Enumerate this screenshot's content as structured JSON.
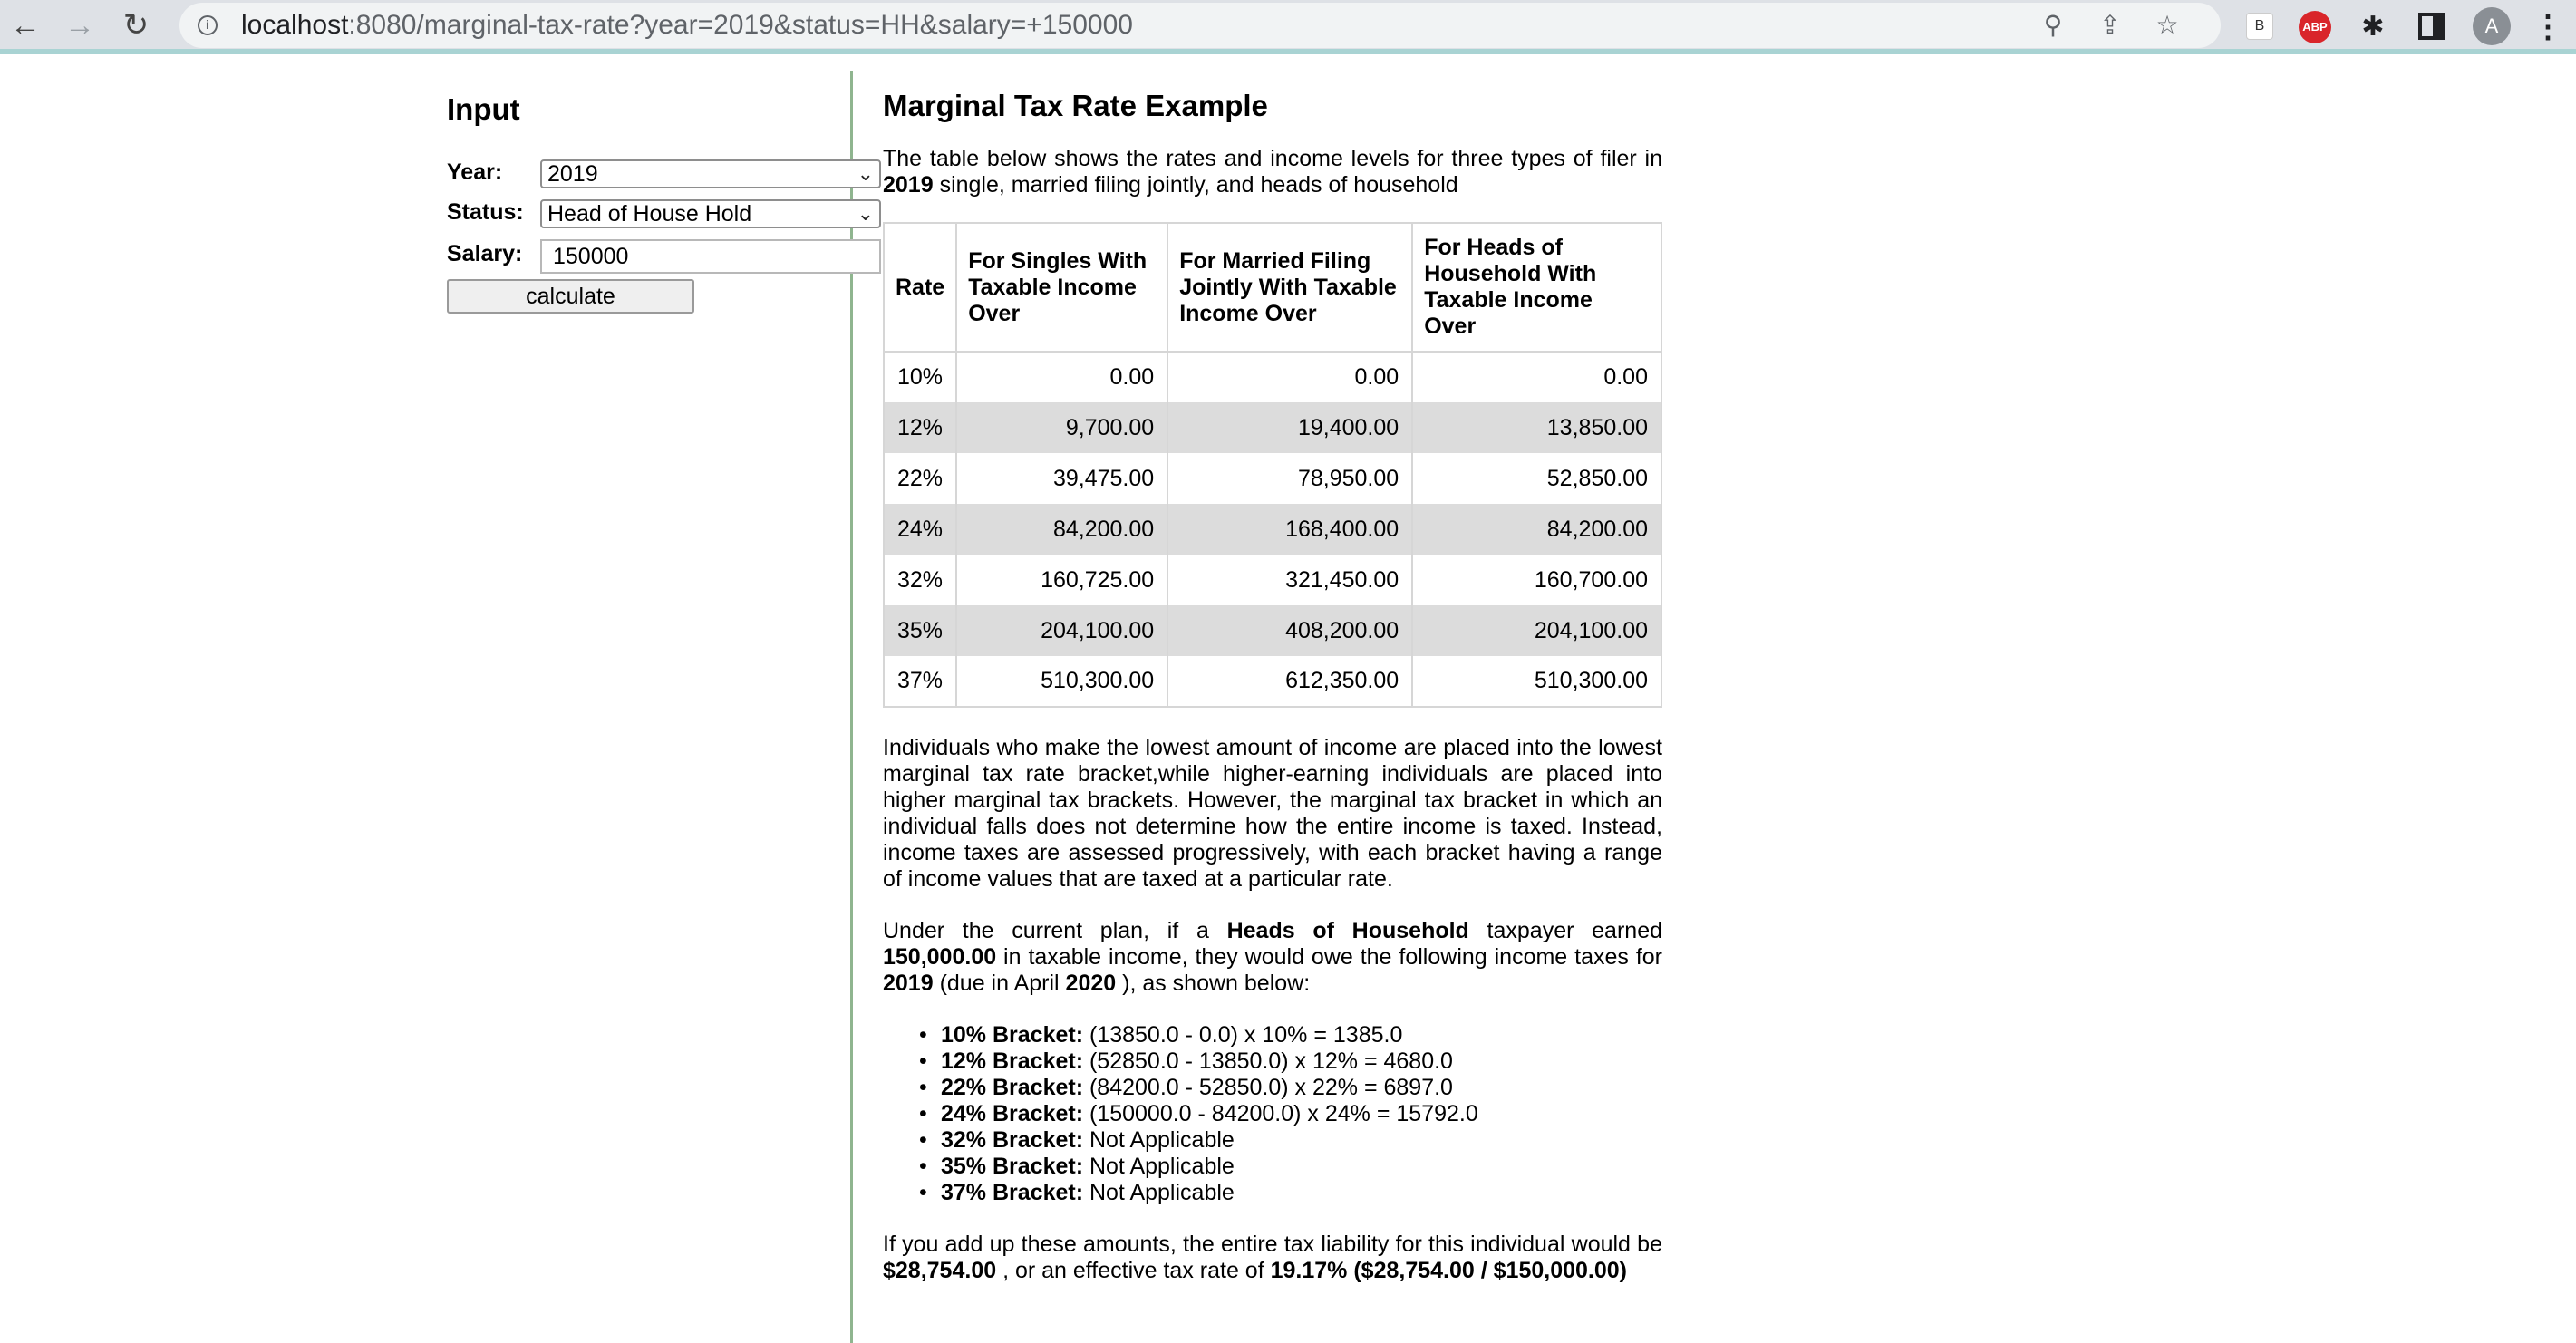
{
  "browser": {
    "url_host": "localhost",
    "url_rest": ":8080/marginal-tax-rate?year=2019&status=HH&salary=+150000",
    "ext_b_label": "B",
    "ext_abp_label": "ABP",
    "avatar_letter": "A"
  },
  "input_panel": {
    "title": "Input",
    "year_label": "Year:",
    "year_value": "2019",
    "status_label": "Status:",
    "status_value": "Head of House Hold",
    "salary_label": "Salary:",
    "salary_value": "150000",
    "calculate_label": "calculate"
  },
  "content": {
    "title": "Marginal Tax Rate Example",
    "intro_text_1": "The table below shows the rates and income levels for three types of filer in ",
    "intro_year": "2019",
    "intro_text_2": " single, married filing jointly, and heads of household",
    "table": {
      "headers": [
        "Rate",
        "For Singles With Taxable Income Over",
        "For Married Filing Jointly With Taxable Income Over",
        "For Heads of Household With Taxable Income Over"
      ],
      "rows": [
        {
          "rate": "10%",
          "single": "0.00",
          "married": "0.00",
          "hoh": "0.00"
        },
        {
          "rate": "12%",
          "single": "9,700.00",
          "married": "19,400.00",
          "hoh": "13,850.00"
        },
        {
          "rate": "22%",
          "single": "39,475.00",
          "married": "78,950.00",
          "hoh": "52,850.00"
        },
        {
          "rate": "24%",
          "single": "84,200.00",
          "married": "168,400.00",
          "hoh": "84,200.00"
        },
        {
          "rate": "32%",
          "single": "160,725.00",
          "married": "321,450.00",
          "hoh": "160,700.00"
        },
        {
          "rate": "35%",
          "single": "204,100.00",
          "married": "408,200.00",
          "hoh": "204,100.00"
        },
        {
          "rate": "37%",
          "single": "510,300.00",
          "married": "612,350.00",
          "hoh": "510,300.00"
        }
      ]
    },
    "explanation": "Individuals who make the lowest amount of income are placed into the lowest marginal tax rate bracket,while higher-earning individuals are placed into higher marginal tax brackets. However, the marginal tax bracket in which an individual falls does not determine how the entire income is taxed. Instead, income taxes are assessed progressively, with each bracket having a range of income values that are taxed at a particular rate.",
    "plan_text_1": "Under the current plan, if a ",
    "plan_status": "Heads of Household",
    "plan_text_2": " taxpayer earned ",
    "plan_income": "150,000.00",
    "plan_text_3": " in taxable income, they would owe the following income taxes for ",
    "plan_year": "2019",
    "plan_text_4": " (due in April ",
    "plan_due_year": "2020",
    "plan_text_5": " ), as shown below:",
    "brackets": [
      {
        "label": "10% Bracket:",
        "detail": " (13850.0 - 0.0) x 10% = 1385.0"
      },
      {
        "label": "12% Bracket:",
        "detail": " (52850.0 - 13850.0) x 12% = 4680.0"
      },
      {
        "label": "22% Bracket:",
        "detail": " (84200.0 - 52850.0) x 22% = 6897.0"
      },
      {
        "label": "24% Bracket:",
        "detail": " (150000.0 - 84200.0) x 24% = 15792.0"
      },
      {
        "label": "32% Bracket:",
        "detail": " Not Applicable"
      },
      {
        "label": "35% Bracket:",
        "detail": " Not Applicable"
      },
      {
        "label": "37% Bracket:",
        "detail": " Not Applicable"
      }
    ],
    "summary_text_1": "If you add up these amounts, the entire tax liability for this individual would be ",
    "summary_liability": "$28,754.00",
    "summary_text_2": " , or an effective tax rate of ",
    "summary_rate": "19.17% ($28,754.00 / $150,000.00)"
  }
}
